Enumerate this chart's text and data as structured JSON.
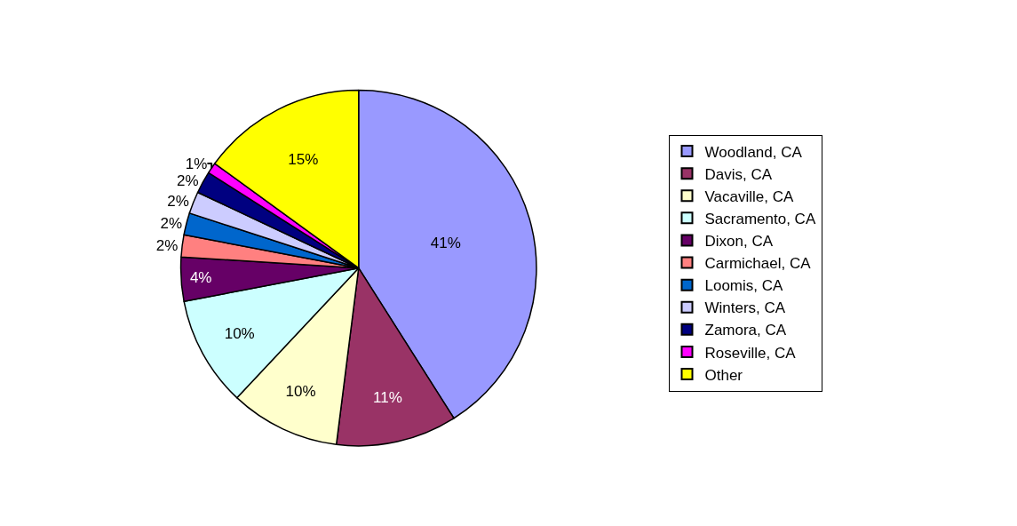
{
  "chart_data": {
    "type": "pie",
    "categories": [
      "Woodland, CA",
      "Davis, CA",
      "Vacaville, CA",
      "Sacramento, CA",
      "Dixon, CA",
      "Carmichael, CA",
      "Loomis, CA",
      "Winters, CA",
      "Zamora, CA",
      "Roseville, CA",
      "Other"
    ],
    "values": [
      41,
      11,
      10,
      10,
      4,
      2,
      2,
      2,
      2,
      1,
      15
    ],
    "value_labels": [
      "41%",
      "11%",
      "10%",
      "10%",
      "4%",
      "2%",
      "2%",
      "2%",
      "2%",
      "1%",
      "15%"
    ],
    "colors": [
      "#9999ff",
      "#993366",
      "#ffffcc",
      "#ccffff",
      "#660066",
      "#ff8080",
      "#0066cc",
      "#ccccff",
      "#000080",
      "#ff00ff",
      "#ffff00"
    ],
    "legend": "right"
  }
}
